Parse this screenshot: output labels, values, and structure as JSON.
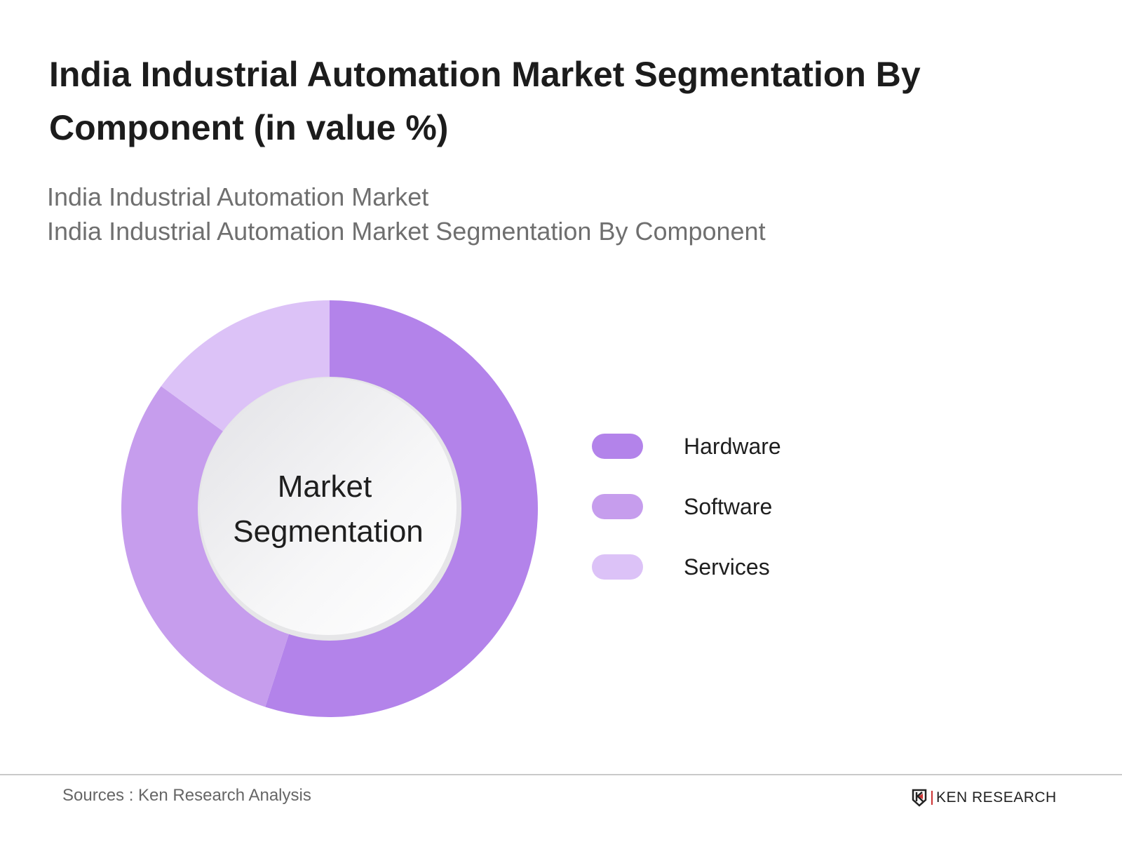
{
  "title": "India Industrial Automation Market Segmentation By Component (in value %)",
  "subtitle_lines": [
    "India Industrial Automation Market",
    "India Industrial Automation Market Segmentation By Component"
  ],
  "chart_data": {
    "type": "pie",
    "variant": "donut",
    "center_label": [
      "Market",
      "Segmentation"
    ],
    "categories": [
      "Hardware",
      "Software",
      "Services"
    ],
    "values": [
      55,
      30,
      15
    ],
    "colors": [
      "#b383ea",
      "#c69ded",
      "#dcc2f7"
    ],
    "legend_placement": "right"
  },
  "footer": {
    "sources": "Sources : Ken Research Analysis",
    "logo_text": "KEN RESEARCH"
  }
}
